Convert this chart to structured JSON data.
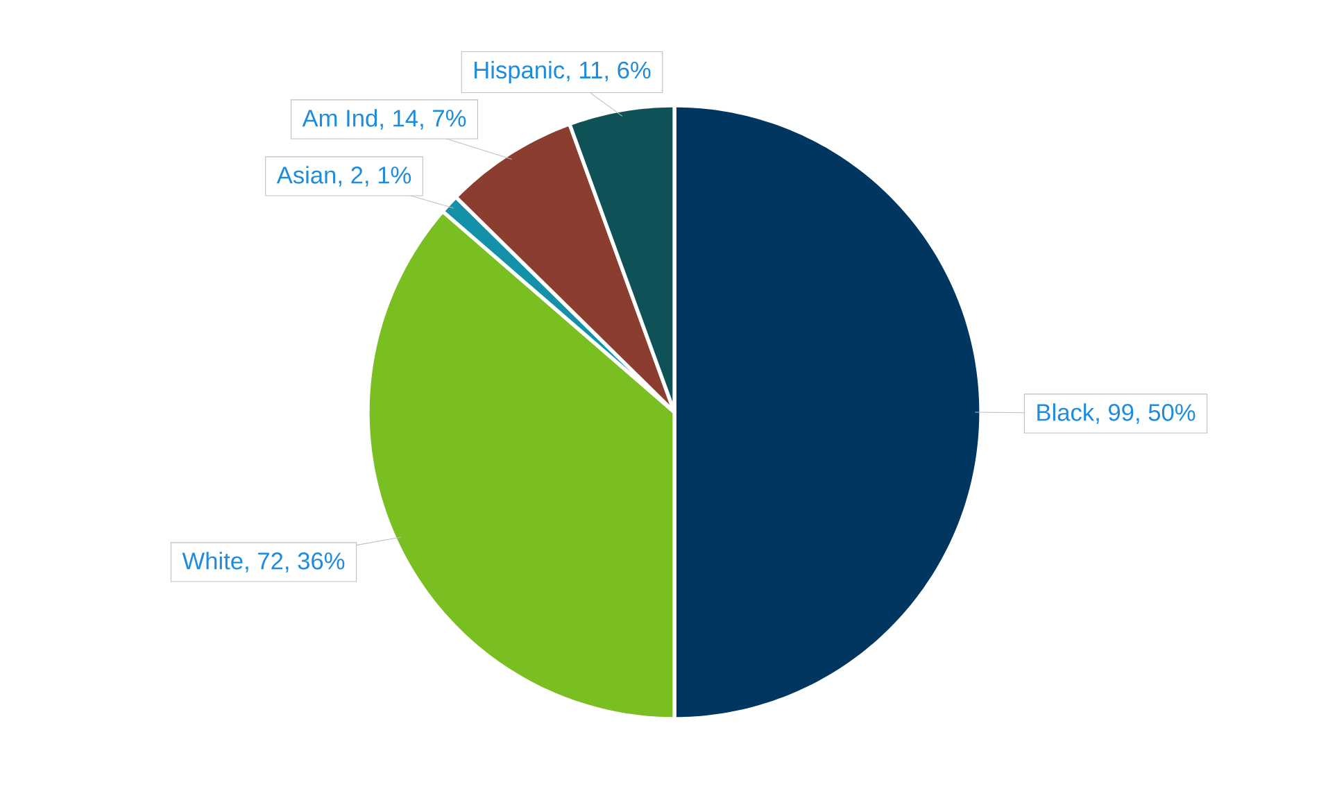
{
  "chart_data": {
    "type": "pie",
    "categories": [
      "Black",
      "White",
      "Asian",
      "Am Ind",
      "Hispanic"
    ],
    "values": [
      99,
      72,
      2,
      14,
      11
    ],
    "value_labels": [
      ", 99, 50%",
      ", 72, 36%",
      ", 2, 1%",
      ", 14, 7%",
      ", 11, 6%"
    ],
    "colors": [
      "#003660",
      "#7abf22",
      "#1291a9",
      "#8b3e2f",
      "#0e5156"
    ]
  }
}
